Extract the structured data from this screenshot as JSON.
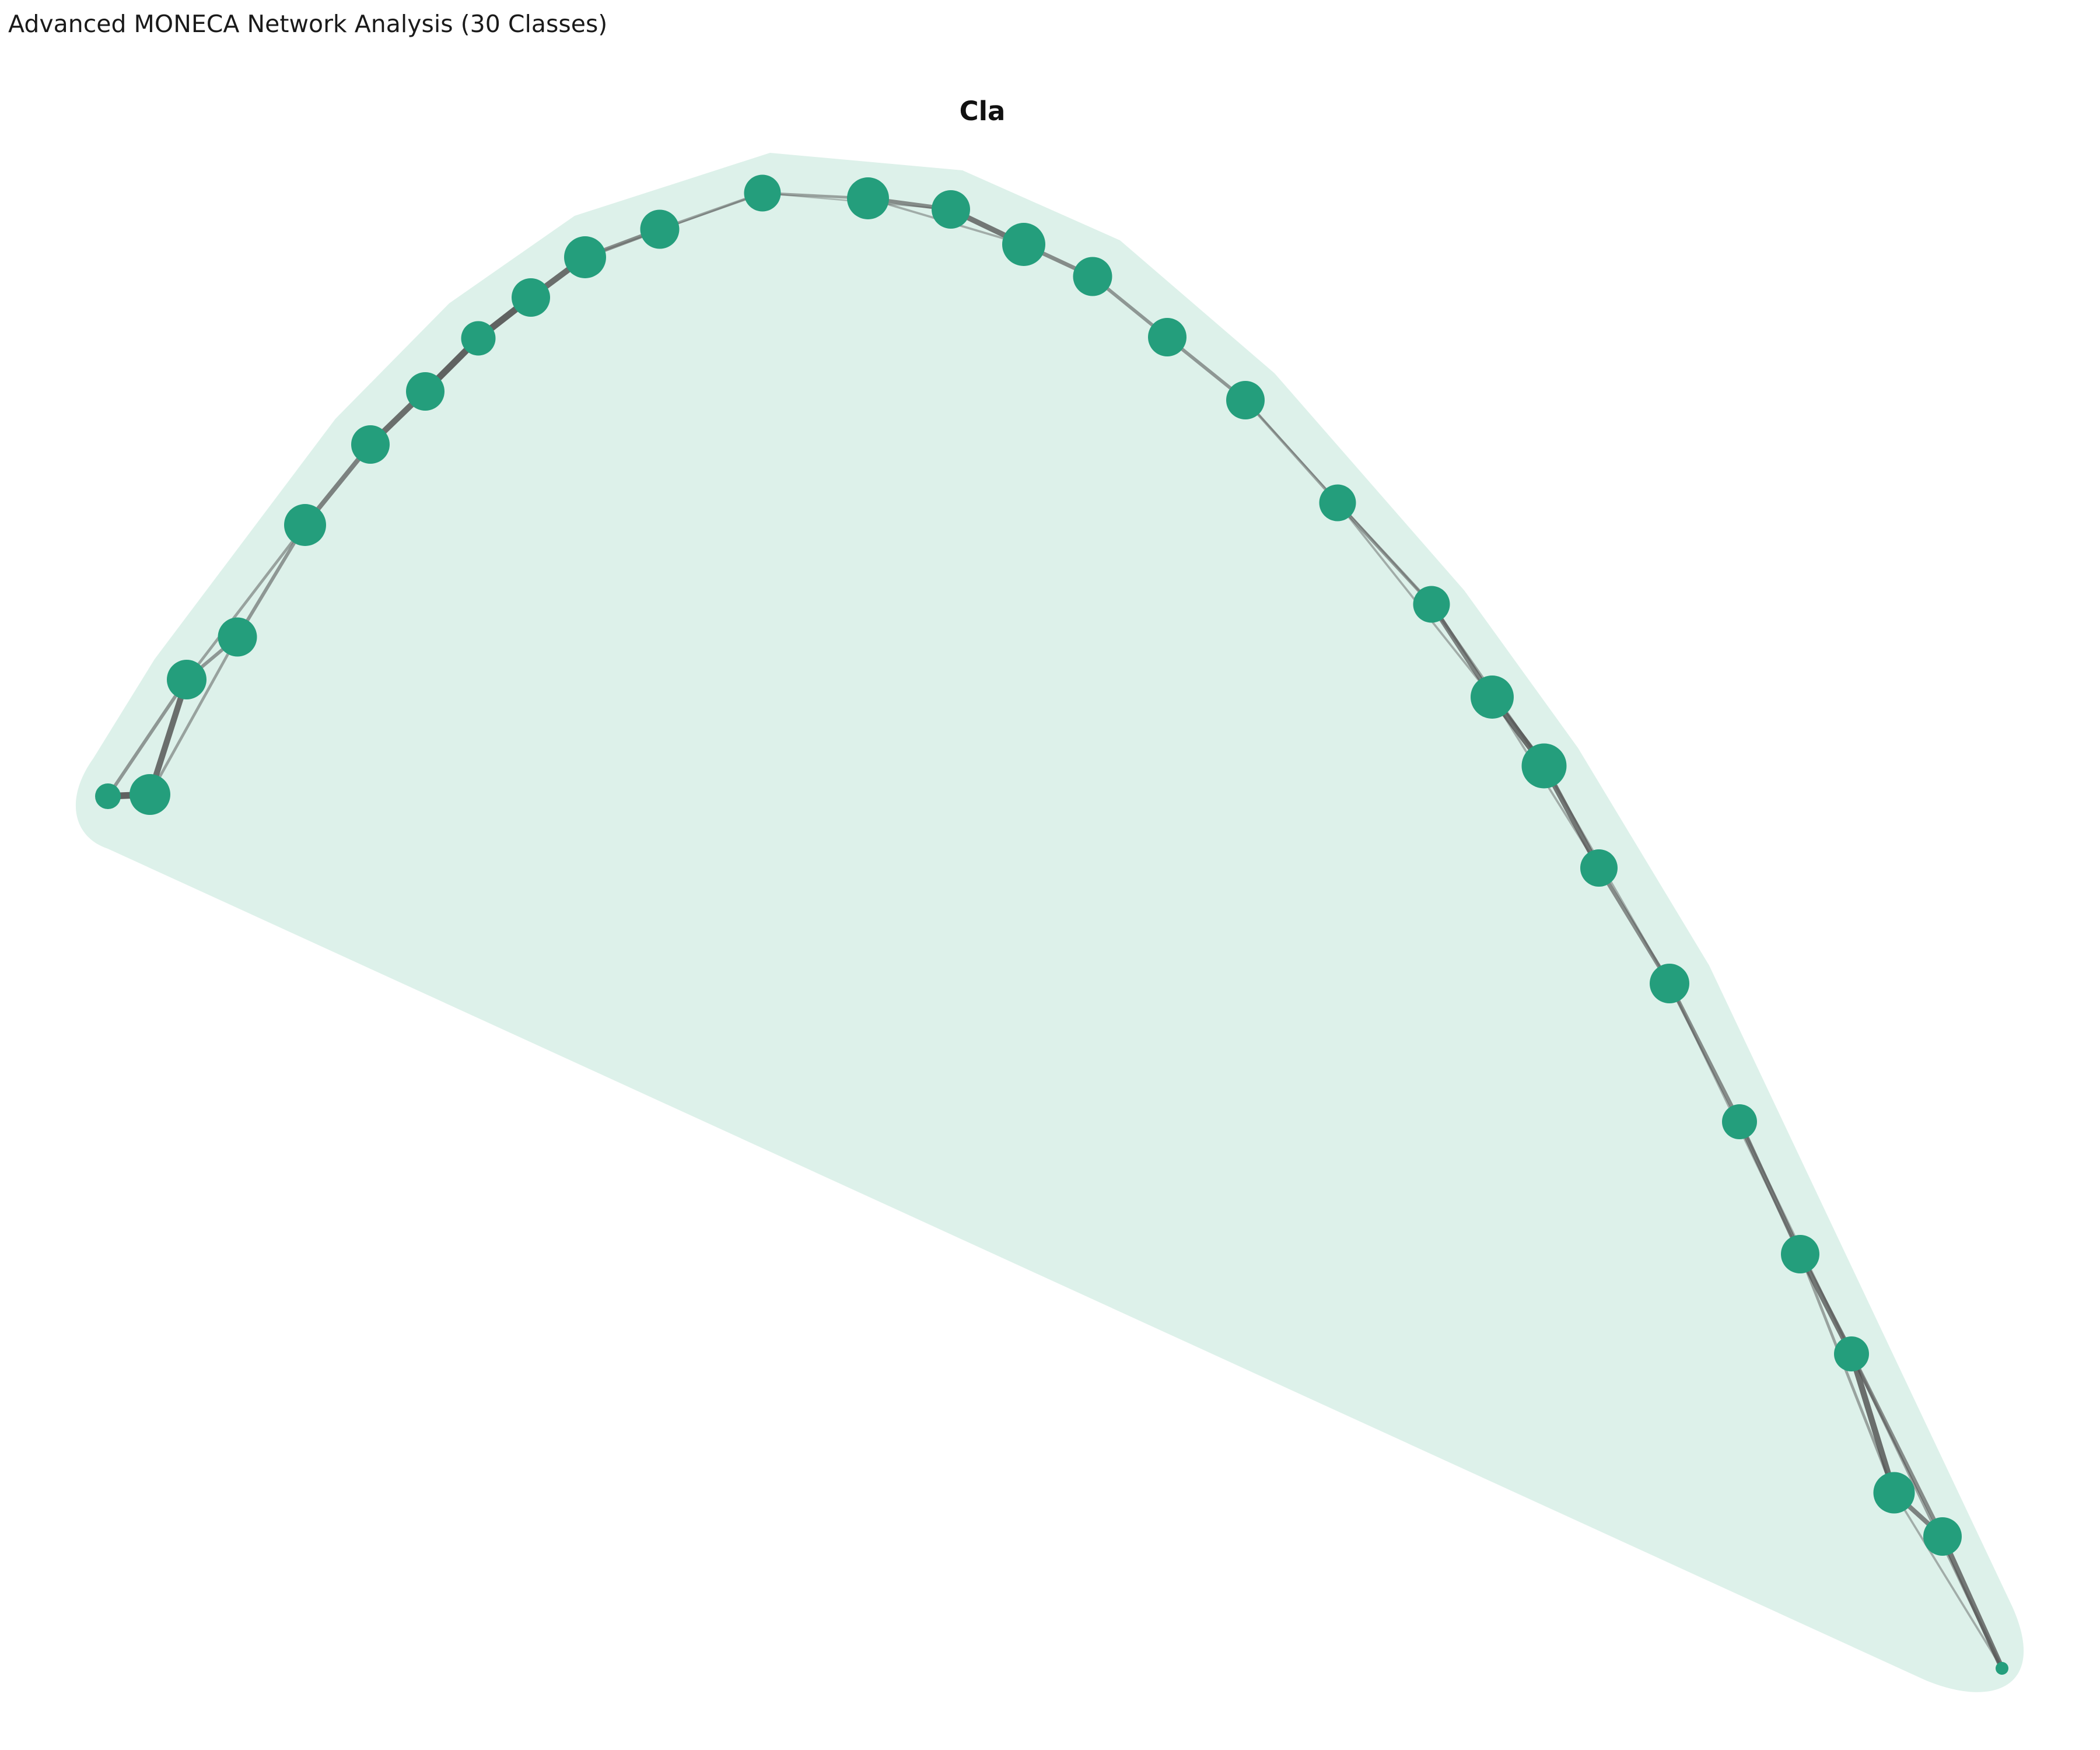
{
  "figure": {
    "title": "Advanced MONECA Network Analysis (30 Classes)"
  },
  "cluster": {
    "label": "Cla",
    "hull_color": "#ddf1ea",
    "node_color": "#249e7c",
    "edge_color": "#505050"
  },
  "nodes": [
    {
      "id": 0,
      "size": 44
    },
    {
      "id": 1,
      "size": 70
    },
    {
      "id": 2,
      "size": 68
    },
    {
      "id": 3,
      "size": 67
    },
    {
      "id": 4,
      "size": 72
    },
    {
      "id": 5,
      "size": 66
    },
    {
      "id": 6,
      "size": 66
    },
    {
      "id": 7,
      "size": 59
    },
    {
      "id": 8,
      "size": 66
    },
    {
      "id": 9,
      "size": 72
    },
    {
      "id": 10,
      "size": 67
    },
    {
      "id": 11,
      "size": 63
    },
    {
      "id": 12,
      "size": 72
    },
    {
      "id": 13,
      "size": 66
    },
    {
      "id": 14,
      "size": 74
    },
    {
      "id": 15,
      "size": 67
    },
    {
      "id": 16,
      "size": 66
    },
    {
      "id": 17,
      "size": 66
    },
    {
      "id": 18,
      "size": 63
    },
    {
      "id": 19,
      "size": 63
    },
    {
      "id": 20,
      "size": 74
    },
    {
      "id": 21,
      "size": 77
    },
    {
      "id": 22,
      "size": 64
    },
    {
      "id": 23,
      "size": 68
    },
    {
      "id": 24,
      "size": 60
    },
    {
      "id": 25,
      "size": 66
    },
    {
      "id": 26,
      "size": 60
    },
    {
      "id": 27,
      "size": 71
    },
    {
      "id": 28,
      "size": 66
    },
    {
      "id": 29,
      "size": 22
    }
  ],
  "edges": [
    {
      "source": 0,
      "target": 1,
      "weight": 9
    },
    {
      "source": 0,
      "target": 2,
      "weight": 4
    },
    {
      "source": 1,
      "target": 2,
      "weight": 8
    },
    {
      "source": 1,
      "target": 3,
      "weight": 3
    },
    {
      "source": 2,
      "target": 3,
      "weight": 4
    },
    {
      "source": 2,
      "target": 4,
      "weight": 3
    },
    {
      "source": 3,
      "target": 4,
      "weight": 4
    },
    {
      "source": 4,
      "target": 5,
      "weight": 6
    },
    {
      "source": 5,
      "target": 6,
      "weight": 8
    },
    {
      "source": 6,
      "target": 7,
      "weight": 9
    },
    {
      "source": 7,
      "target": 8,
      "weight": 9
    },
    {
      "source": 8,
      "target": 9,
      "weight": 8
    },
    {
      "source": 9,
      "target": 10,
      "weight": 5
    },
    {
      "source": 9,
      "target": 11,
      "weight": 1
    },
    {
      "source": 10,
      "target": 11,
      "weight": 3
    },
    {
      "source": 11,
      "target": 12,
      "weight": 3
    },
    {
      "source": 11,
      "target": 13,
      "weight": 1
    },
    {
      "source": 12,
      "target": 13,
      "weight": 5
    },
    {
      "source": 13,
      "target": 14,
      "weight": 7
    },
    {
      "source": 12,
      "target": 14,
      "weight": 2
    },
    {
      "source": 14,
      "target": 15,
      "weight": 5
    },
    {
      "source": 15,
      "target": 16,
      "weight": 4
    },
    {
      "source": 16,
      "target": 17,
      "weight": 4
    },
    {
      "source": 17,
      "target": 18,
      "weight": 3
    },
    {
      "source": 17,
      "target": 19,
      "weight": 1
    },
    {
      "source": 18,
      "target": 19,
      "weight": 4
    },
    {
      "source": 19,
      "target": 20,
      "weight": 6
    },
    {
      "source": 18,
      "target": 20,
      "weight": 2
    },
    {
      "source": 20,
      "target": 21,
      "weight": 8
    },
    {
      "source": 19,
      "target": 21,
      "weight": 3
    },
    {
      "source": 21,
      "target": 22,
      "weight": 7
    },
    {
      "source": 20,
      "target": 22,
      "weight": 2
    },
    {
      "source": 22,
      "target": 23,
      "weight": 5
    },
    {
      "source": 21,
      "target": 23,
      "weight": 2
    },
    {
      "source": 23,
      "target": 24,
      "weight": 5
    },
    {
      "source": 24,
      "target": 25,
      "weight": 6
    },
    {
      "source": 23,
      "target": 25,
      "weight": 2
    },
    {
      "source": 25,
      "target": 26,
      "weight": 7
    },
    {
      "source": 24,
      "target": 26,
      "weight": 2
    },
    {
      "source": 26,
      "target": 27,
      "weight": 8
    },
    {
      "source": 25,
      "target": 27,
      "weight": 3
    },
    {
      "source": 26,
      "target": 28,
      "weight": 5
    },
    {
      "source": 27,
      "target": 28,
      "weight": 6
    },
    {
      "source": 28,
      "target": 29,
      "weight": 7
    },
    {
      "source": 27,
      "target": 29,
      "weight": 2
    },
    {
      "source": 26,
      "target": 29,
      "weight": 3
    }
  ]
}
